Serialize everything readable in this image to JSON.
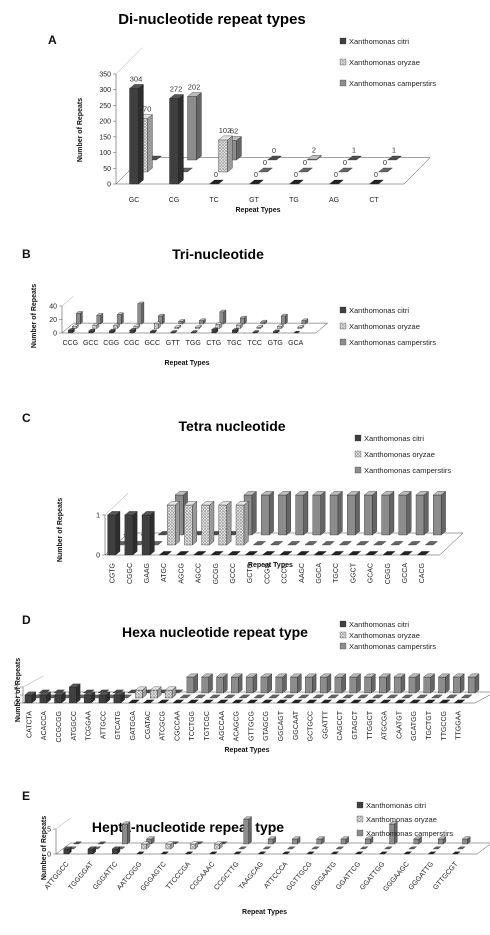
{
  "legend_names": [
    "Xanthomonas citri",
    "Xanthomonas oryzae",
    "Xanthomonas camperstirs"
  ],
  "colors": {
    "citri": "#3f3f3f",
    "oryzae": "#b8b8b8",
    "campestris": "#8c8c8c"
  },
  "chart_data": [
    {
      "letter": "A",
      "type": "bar",
      "title": "Di-nucleotide repeat types",
      "xlabel": "Repeat Types",
      "ylabel": "Number of Repeats",
      "ylim": [
        0,
        350
      ],
      "yticks": [
        "0",
        "50",
        "100",
        "150",
        "200",
        "250",
        "300",
        "350"
      ],
      "categories": [
        "GC",
        "CG",
        "TC",
        "GT",
        "TG",
        "AG",
        "CT"
      ],
      "series": [
        {
          "name": "Xanthomonas citri",
          "values": [
            304,
            272,
            0,
            0,
            0,
            0,
            0
          ]
        },
        {
          "name": "Xanthomonas oryzae",
          "values": [
            170,
            0,
            102,
            0,
            0,
            0,
            0
          ]
        },
        {
          "name": "Xanthomonas camperstirs",
          "values": [
            0,
            202,
            62,
            0,
            2,
            1,
            1
          ]
        }
      ],
      "data_labels": [
        [
          "304",
          "272",
          "0",
          "0",
          "0",
          "0",
          "0"
        ],
        [
          "170",
          "",
          "102",
          "0",
          "0",
          "0",
          "0"
        ],
        [
          "",
          "202",
          "62",
          "0",
          "2",
          "1",
          "1"
        ]
      ],
      "legend_position": "right"
    },
    {
      "letter": "B",
      "type": "bar",
      "title": "Tri-nucleotide",
      "xlabel": "Repeat Types",
      "ylabel": "Number of Repeats",
      "ylim": [
        0,
        40
      ],
      "yticks": [
        "0",
        "20",
        "40"
      ],
      "categories": [
        "CCG",
        "GCC",
        "CGG",
        "CGC",
        "GCC",
        "GTT",
        "TGG",
        "CTG",
        "TGC",
        "TCC",
        "GTG",
        "GCA"
      ],
      "series": [
        {
          "name": "Xanthomonas citri",
          "values": [
            4,
            3,
            3,
            4,
            2,
            1,
            1,
            5,
            4,
            1,
            2,
            0
          ]
        },
        {
          "name": "Xanthomonas oryzae",
          "values": [
            3,
            5,
            4,
            3,
            7,
            2,
            2,
            6,
            5,
            2,
            3,
            2
          ]
        },
        {
          "name": "Xanthomonas camperstirs",
          "values": [
            16,
            13,
            14,
            30,
            12,
            4,
            5,
            18,
            9,
            3,
            12,
            5
          ]
        }
      ],
      "legend_position": "right"
    },
    {
      "letter": "C",
      "type": "bar",
      "title": "Tetra nucleotide",
      "xlabel": "Repeat Types",
      "ylabel": "Number of Repeats",
      "ylim": [
        0,
        1
      ],
      "yticks": [
        "0",
        "1"
      ],
      "categories": [
        "CGTG",
        "CGGC",
        "GAAG",
        "ATGC",
        "AGCG",
        "AGCC",
        "GCGG",
        "GCCC",
        "GCTG",
        "CCGG",
        "CCCG",
        "AAGC",
        "GGCA",
        "TGCC",
        "GGCT",
        "GCAC",
        "CGGG",
        "GCCA",
        "CACG"
      ],
      "series": [
        {
          "name": "Xanthomonas citri",
          "values": [
            1,
            1,
            1,
            0,
            0,
            0,
            0,
            0,
            0,
            0,
            0,
            0,
            0,
            0,
            0,
            0,
            0,
            0,
            0
          ]
        },
        {
          "name": "Xanthomonas oryzae",
          "values": [
            0,
            0,
            0,
            1,
            1,
            1,
            1,
            1,
            0,
            0,
            0,
            0,
            0,
            0,
            0,
            0,
            0,
            0,
            0
          ]
        },
        {
          "name": "Xanthomonas camperstirs",
          "values": [
            0,
            0,
            0,
            1,
            0,
            0,
            0,
            1,
            1,
            1,
            1,
            1,
            1,
            1,
            1,
            1,
            1,
            1,
            1
          ]
        }
      ],
      "legend_position": "top-right"
    },
    {
      "letter": "D",
      "type": "bar",
      "title": "Hexa nucleotide repeat type",
      "xlabel": "Repeat Types",
      "ylabel": "Number of Repeats",
      "ylim": [
        0,
        2
      ],
      "yticks": [
        "0",
        "1",
        "2"
      ],
      "categories": [
        "CATCTA",
        "ACACCA",
        "CCGCGG",
        "ATGGCC",
        "TCGGAA",
        "ATTGCC",
        "GTCATG",
        "GATGGA",
        "CGATAC",
        "ATCGCG",
        "CGCCAA",
        "TCCTGG",
        "TGTCGC",
        "AGCCAA",
        "ACAGCG",
        "GTTGCG",
        "GTAGCG",
        "GGCAGT",
        "GGCAAT",
        "GCTGCC",
        "GGATTT",
        "CAGCCT",
        "GTAGCT",
        "TTGGCT",
        "ATGCGA",
        "CAATGT",
        "GCATGG",
        "TGCTGT",
        "TTGCCG",
        "TTGGAA"
      ],
      "series": [
        {
          "name": "Xanthomonas citri",
          "values": [
            1,
            1,
            1,
            2,
            1,
            1,
            1,
            0,
            0,
            0,
            0,
            0,
            0,
            0,
            0,
            0,
            0,
            0,
            0,
            0,
            0,
            0,
            0,
            0,
            0,
            0,
            0,
            0,
            0,
            0
          ]
        },
        {
          "name": "Xanthomonas oryzae",
          "values": [
            0,
            0,
            0,
            0,
            0,
            0,
            0,
            1,
            1,
            1,
            0,
            0,
            0,
            0,
            0,
            0,
            0,
            0,
            0,
            0,
            0,
            0,
            0,
            0,
            0,
            0,
            0,
            0,
            0,
            0
          ]
        },
        {
          "name": "Xanthomonas camperstirs",
          "values": [
            0,
            0,
            0,
            0,
            0,
            0,
            0,
            0,
            0,
            0,
            2,
            2,
            2,
            2,
            2,
            2,
            2,
            2,
            2,
            2,
            2,
            2,
            2,
            2,
            2,
            2,
            2,
            2,
            2,
            2
          ]
        }
      ],
      "legend_position": "top-right"
    },
    {
      "letter": "E",
      "type": "bar",
      "title": "Hepta-nucleotide repeat type",
      "xlabel": "Repeat Types",
      "ylabel": "Number of Repeats",
      "ylim": [
        0,
        5
      ],
      "yticks": [
        "0",
        "5"
      ],
      "categories": [
        "ATTGGCC",
        "TGGGGAT",
        "GGGATTC",
        "AATCGGG",
        "GGGAGTC",
        "TTCCCGA",
        "CGCAAAC",
        "CCGCTTG",
        "TAAGCAG",
        "ATTCCCA",
        "GGTTGCG",
        "GGGAATG",
        "GGATTCG",
        "GGATTGG",
        "GGGAAGC",
        "GGGATTG",
        "GTTGCGT"
      ],
      "series": [
        {
          "name": "Xanthomonas citri",
          "values": [
            1,
            1,
            1,
            0,
            0,
            0,
            0,
            0,
            0,
            0,
            0,
            0,
            0,
            0,
            0,
            0,
            0
          ]
        },
        {
          "name": "Xanthomonas oryzae",
          "values": [
            0,
            0,
            0,
            1,
            1,
            1,
            1,
            0,
            0,
            0,
            0,
            0,
            0,
            0,
            0,
            0,
            0
          ]
        },
        {
          "name": "Xanthomonas camperstirs",
          "values": [
            0,
            0,
            4,
            1,
            0,
            0,
            0,
            5,
            1,
            1,
            1,
            1,
            1,
            4,
            1,
            1,
            1
          ]
        }
      ],
      "legend_position": "top-right"
    }
  ]
}
